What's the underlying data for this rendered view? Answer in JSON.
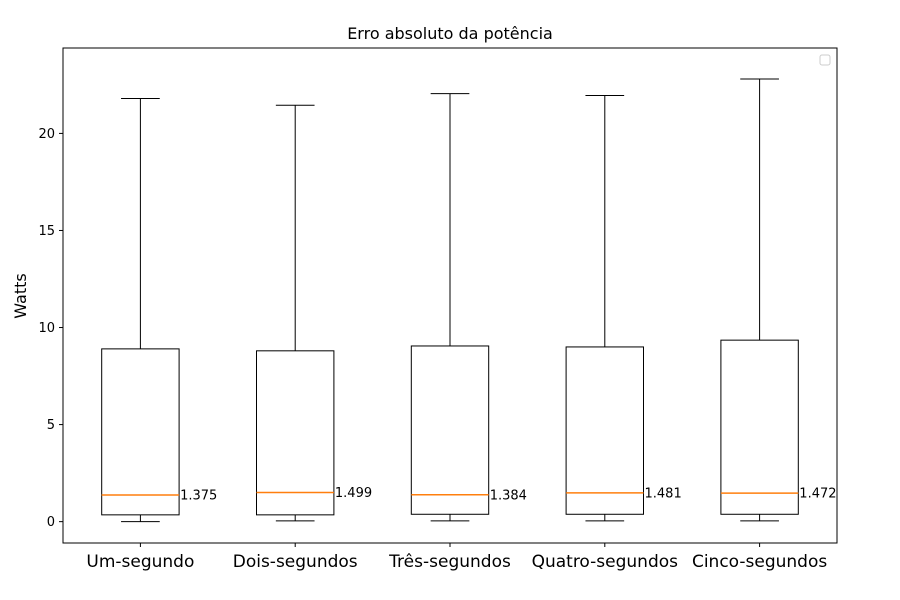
{
  "chart_data": {
    "type": "box",
    "title": "Erro absoluto da potência",
    "xlabel": "",
    "ylabel": "Watts",
    "ylim": [
      -1.1,
      24.4
    ],
    "yticks": [
      0,
      5,
      10,
      15,
      20
    ],
    "categories": [
      "Um-segundo",
      "Dois-segundos",
      "Três-segundos",
      "Quatro-segundos",
      "Cinco-segundos"
    ],
    "boxes": [
      {
        "whisker_low": 0.0,
        "q1": 0.35,
        "median": 1.375,
        "q3": 8.9,
        "whisker_high": 21.8,
        "label": "1.375"
      },
      {
        "whisker_low": 0.04,
        "q1": 0.35,
        "median": 1.499,
        "q3": 8.8,
        "whisker_high": 21.45,
        "label": "1.499"
      },
      {
        "whisker_low": 0.04,
        "q1": 0.38,
        "median": 1.384,
        "q3": 9.05,
        "whisker_high": 22.05,
        "label": "1.384"
      },
      {
        "whisker_low": 0.04,
        "q1": 0.38,
        "median": 1.481,
        "q3": 9.0,
        "whisker_high": 21.95,
        "label": "1.481"
      },
      {
        "whisker_low": 0.04,
        "q1": 0.38,
        "median": 1.472,
        "q3": 9.35,
        "whisker_high": 22.8,
        "label": "1.472"
      }
    ],
    "grid": false,
    "legend": "top-right",
    "colors": {
      "box": "#000000",
      "median": "#ff7f0e",
      "background": "#ffffff"
    }
  }
}
